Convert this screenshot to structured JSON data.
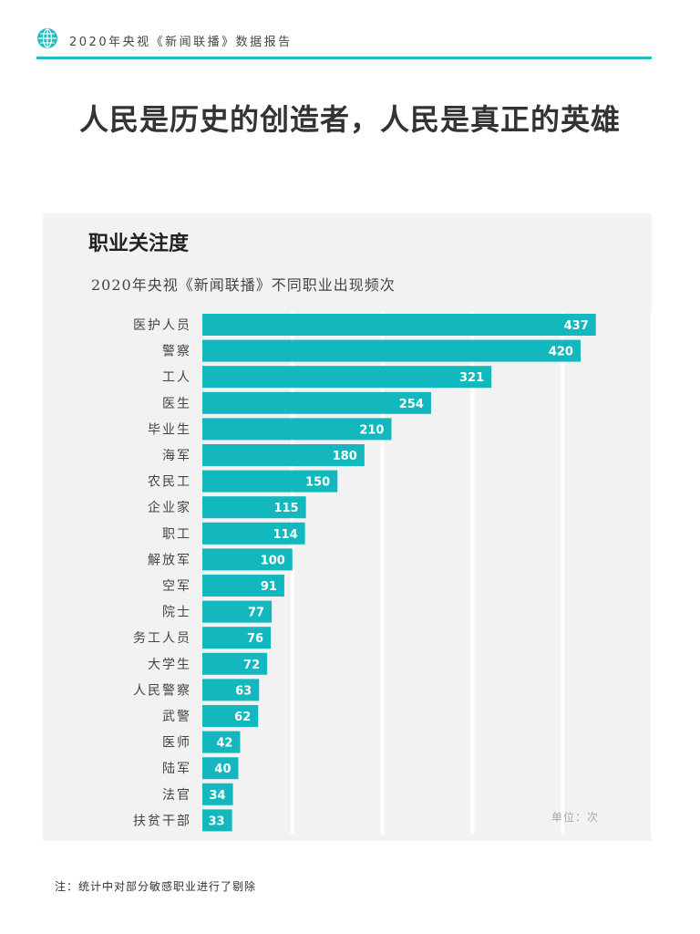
{
  "header": {
    "title": "2020年央视《新闻联播》数据报告",
    "icon": "globe-icon"
  },
  "headline": "人民是历史的创造者，人民是真正的英雄",
  "colors": {
    "accent": "#1fbcc0",
    "bar": "#12b8be",
    "panel": "#f2f2f2"
  },
  "chart": {
    "title": "职业关注度",
    "subtitle": "2020年央视《新闻联播》不同职业出现频次",
    "unit": "单位：次"
  },
  "chart_data": {
    "type": "bar",
    "orientation": "horizontal",
    "title": "职业关注度",
    "subtitle": "2020年央视《新闻联播》不同职业出现频次",
    "xlabel": "",
    "ylabel": "",
    "xlim": [
      0,
      500
    ],
    "grid": true,
    "categories": [
      "医护人员",
      "警察",
      "工人",
      "医生",
      "毕业生",
      "海军",
      "农民工",
      "企业家",
      "职工",
      "解放军",
      "空军",
      "院士",
      "务工人员",
      "大学生",
      "人民警察",
      "武警",
      "医师",
      "陆军",
      "法官",
      "扶贫干部"
    ],
    "values": [
      437,
      420,
      321,
      254,
      210,
      180,
      150,
      115,
      114,
      100,
      91,
      77,
      76,
      72,
      63,
      62,
      42,
      40,
      34,
      33
    ]
  },
  "note": "注：统计中对部分敏感职业进行了剔除"
}
